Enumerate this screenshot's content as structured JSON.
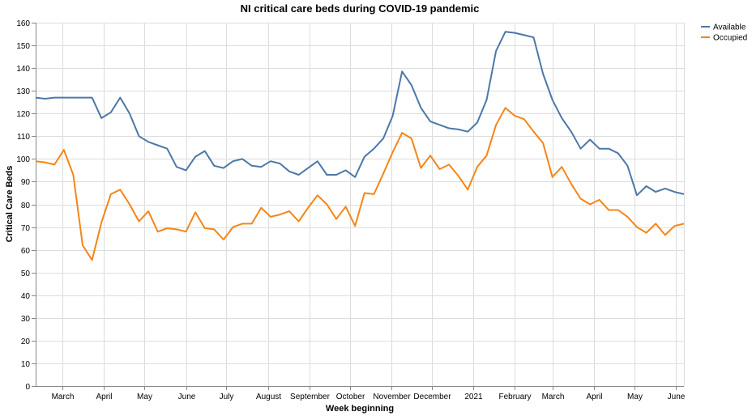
{
  "chart_data": {
    "type": "line",
    "title": "NI critical care beds during COVID-19 pandemic",
    "xlabel": "Week beginning",
    "ylabel": "Critical Care Beds",
    "ylim": [
      0,
      160
    ],
    "y_ticks": [
      0,
      10,
      20,
      30,
      40,
      50,
      60,
      70,
      80,
      90,
      100,
      110,
      120,
      130,
      140,
      150,
      160
    ],
    "x_range": [
      "2020-02-10",
      "2021-06-07"
    ],
    "x_ticks": [
      {
        "date": "2020-03-01",
        "label": "March"
      },
      {
        "date": "2020-04-01",
        "label": "April"
      },
      {
        "date": "2020-05-01",
        "label": "May"
      },
      {
        "date": "2020-06-01",
        "label": "June"
      },
      {
        "date": "2020-07-01",
        "label": "July"
      },
      {
        "date": "2020-08-01",
        "label": "August"
      },
      {
        "date": "2020-09-01",
        "label": "September"
      },
      {
        "date": "2020-10-01",
        "label": "October"
      },
      {
        "date": "2020-11-01",
        "label": "November"
      },
      {
        "date": "2020-12-01",
        "label": "December"
      },
      {
        "date": "2021-01-01",
        "label": "2021"
      },
      {
        "date": "2021-02-01",
        "label": "February"
      },
      {
        "date": "2021-03-01",
        "label": "March"
      },
      {
        "date": "2021-04-01",
        "label": "April"
      },
      {
        "date": "2021-05-01",
        "label": "May"
      },
      {
        "date": "2021-06-01",
        "label": "June"
      }
    ],
    "grid": true,
    "legend_position": "top-right",
    "x": [
      "2020-02-10",
      "2020-02-17",
      "2020-02-24",
      "2020-03-02",
      "2020-03-09",
      "2020-03-16",
      "2020-03-23",
      "2020-03-30",
      "2020-04-06",
      "2020-04-13",
      "2020-04-20",
      "2020-04-27",
      "2020-05-04",
      "2020-05-11",
      "2020-05-18",
      "2020-05-25",
      "2020-06-01",
      "2020-06-08",
      "2020-06-15",
      "2020-06-22",
      "2020-06-29",
      "2020-07-06",
      "2020-07-13",
      "2020-07-20",
      "2020-07-27",
      "2020-08-03",
      "2020-08-10",
      "2020-08-17",
      "2020-08-24",
      "2020-08-31",
      "2020-09-07",
      "2020-09-14",
      "2020-09-21",
      "2020-09-28",
      "2020-10-05",
      "2020-10-12",
      "2020-10-19",
      "2020-10-26",
      "2020-11-02",
      "2020-11-09",
      "2020-11-16",
      "2020-11-23",
      "2020-11-30",
      "2020-12-07",
      "2020-12-14",
      "2020-12-21",
      "2020-12-28",
      "2021-01-04",
      "2021-01-11",
      "2021-01-18",
      "2021-01-25",
      "2021-02-01",
      "2021-02-08",
      "2021-02-15",
      "2021-02-22",
      "2021-03-01",
      "2021-03-08",
      "2021-03-15",
      "2021-03-22",
      "2021-03-29",
      "2021-04-05",
      "2021-04-12",
      "2021-04-19",
      "2021-04-26",
      "2021-05-03",
      "2021-05-10",
      "2021-05-17",
      "2021-05-24",
      "2021-05-31",
      "2021-06-07"
    ],
    "series": [
      {
        "name": "Available",
        "color": "#4c78a8",
        "values": [
          127,
          126.5,
          127,
          127,
          127,
          127,
          127,
          118,
          120.5,
          127,
          120,
          110,
          107.5,
          106,
          104.5,
          96.5,
          95,
          101,
          103.5,
          97,
          96,
          99,
          100,
          97,
          96.5,
          99,
          98,
          94.5,
          93,
          96,
          99,
          93,
          93,
          95,
          92,
          101,
          104.5,
          109,
          119,
          138.5,
          132.5,
          122.5,
          116.5,
          115,
          113.5,
          113,
          112,
          116,
          126,
          147.5,
          156,
          155.5,
          154.5,
          153.5,
          137.5,
          126,
          118,
          112,
          104.5,
          108.5,
          104.5,
          104.5,
          102.5,
          97,
          84,
          88,
          85.5,
          87,
          85.5,
          84.5
        ]
      },
      {
        "name": "Occupied",
        "color": "#f58518",
        "values": [
          99,
          98.5,
          97.5,
          104,
          93,
          62,
          55.5,
          72,
          84.5,
          86.5,
          80,
          72.5,
          77,
          68,
          69.5,
          69,
          68,
          76.5,
          69.5,
          69,
          64.5,
          70,
          71.5,
          71.5,
          78.5,
          74.5,
          75.5,
          77,
          72.5,
          78.5,
          84,
          80,
          73.5,
          79,
          70.5,
          85,
          84.5,
          93.5,
          103,
          111.5,
          109,
          96,
          101.5,
          95.5,
          97.5,
          92.5,
          86.5,
          96.5,
          101.5,
          115,
          122.5,
          119,
          117.5,
          112,
          107,
          92,
          96.5,
          89,
          82.5,
          80,
          82,
          77.5,
          77.5,
          74.5,
          70,
          67.5,
          71.5,
          66.5,
          70.5,
          71.5
        ]
      }
    ]
  }
}
